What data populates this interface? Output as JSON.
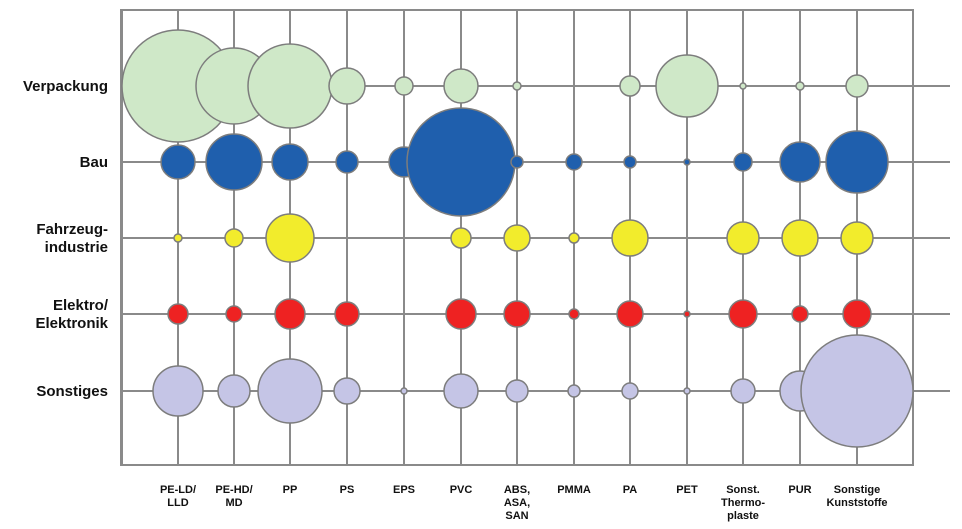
{
  "chart_data": {
    "type": "bubble-matrix",
    "title": "",
    "xlabel": "",
    "ylabel": "",
    "grid": true,
    "columns": [
      [
        "PE-LD/",
        "LLD"
      ],
      [
        "PE-HD/",
        "MD"
      ],
      [
        "PP"
      ],
      [
        "PS"
      ],
      [
        "EPS"
      ],
      [
        "PVC"
      ],
      [
        "ABS,",
        "ASA,",
        "SAN"
      ],
      [
        "PMMA"
      ],
      [
        "PA"
      ],
      [
        "PET"
      ],
      [
        "Sonst.",
        "Thermo-",
        "plaste"
      ],
      [
        "PUR"
      ],
      [
        "Sonstige",
        "Kunststoffe"
      ]
    ],
    "rows": [
      {
        "label": [
          "Verpackung"
        ],
        "color": "#cfe8c8",
        "sizes": [
          56,
          38,
          42,
          18,
          9,
          17,
          4,
          0,
          10,
          31,
          3,
          4,
          11
        ]
      },
      {
        "label": [
          "Bau"
        ],
        "color": "#1f5fad",
        "sizes": [
          17,
          28,
          18,
          11,
          15,
          54,
          6,
          8,
          6,
          3,
          9,
          20,
          31
        ]
      },
      {
        "label": [
          "Fahrzeug-",
          "industrie"
        ],
        "color": "#f2ec2c",
        "sizes": [
          4,
          9,
          24,
          0,
          0,
          10,
          13,
          5,
          18,
          0,
          16,
          18,
          16
        ]
      },
      {
        "label": [
          "Elektro/",
          "Elektronik"
        ],
        "color": "#ee2222",
        "sizes": [
          10,
          8,
          15,
          12,
          0,
          15,
          13,
          5,
          13,
          3,
          14,
          8,
          14
        ]
      },
      {
        "label": [
          "Sonstiges"
        ],
        "color": "#c5c5e6",
        "sizes": [
          25,
          16,
          32,
          13,
          3,
          17,
          11,
          6,
          8,
          3,
          12,
          20,
          56
        ]
      }
    ]
  }
}
